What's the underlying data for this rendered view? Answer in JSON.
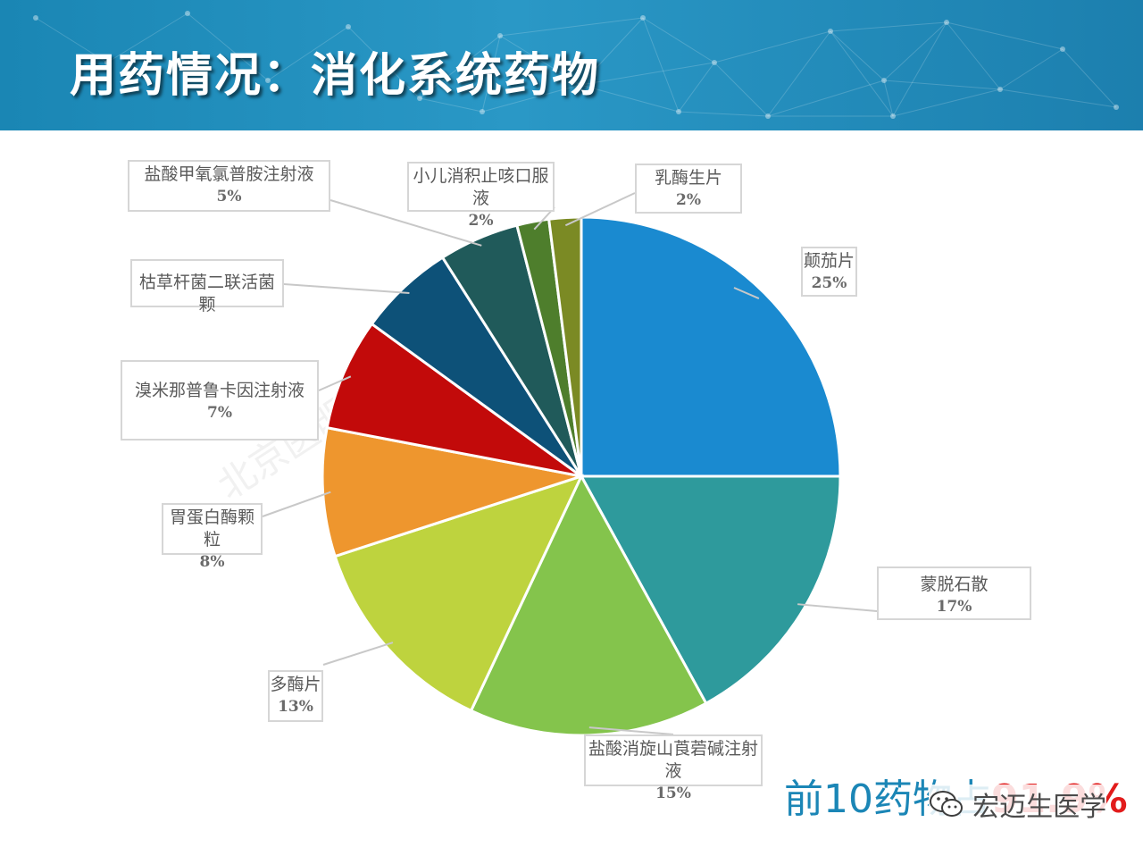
{
  "header": {
    "title": "用药情况：消化系统药物"
  },
  "chart_data": {
    "type": "pie",
    "unit": "%",
    "slices": [
      {
        "label": "颠茄片",
        "value": 25,
        "display": "25%",
        "color": "#1a8ad0"
      },
      {
        "label": "蒙脱石散",
        "value": 17,
        "display": "17%",
        "color": "#2e9a9c"
      },
      {
        "label": "盐酸消旋山莨菪碱注射液",
        "value": 15,
        "display": "15%",
        "color": "#84c44c"
      },
      {
        "label": "多酶片",
        "value": 13,
        "display": "13%",
        "color": "#bed33e"
      },
      {
        "label": "胃蛋白酶颗粒",
        "value": 8,
        "display": "8%",
        "color": "#ee962e"
      },
      {
        "label": "溴米那普鲁卡因注射液",
        "value": 7,
        "display": "7%",
        "color": "#c20a0a"
      },
      {
        "label": "枯草杆菌二联活菌颗",
        "value": 6,
        "display": "",
        "color": "#0d5178"
      },
      {
        "label": "盐酸甲氧氯普胺注射液",
        "value": 5,
        "display": "5%",
        "color": "#205a5a"
      },
      {
        "label": "小儿消积止咳口服液",
        "value": 2,
        "display": "2%",
        "color": "#4e7e2c"
      },
      {
        "label": "乳酶生片",
        "value": 2,
        "display": "2%",
        "color": "#7b8a24"
      }
    ]
  },
  "footer": {
    "text": "前10药物占",
    "value": "91.9%"
  },
  "watermark": {
    "text": "北京医明诚科技有限公司"
  },
  "wechat": {
    "account": "宏迈生医学"
  }
}
